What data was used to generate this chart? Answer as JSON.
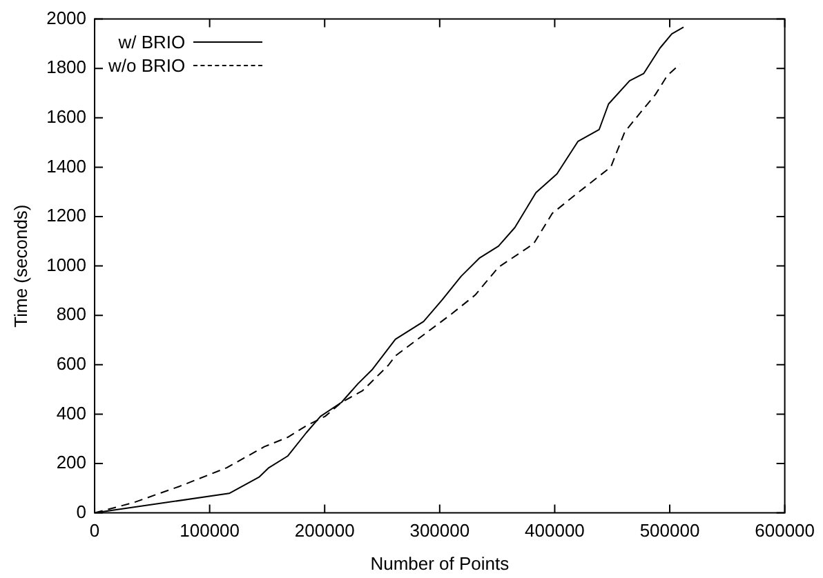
{
  "chart_data": {
    "type": "line",
    "xlabel": "Number of Points",
    "ylabel": "Time (seconds)",
    "xlim": [
      0,
      600000
    ],
    "xticks": [
      0,
      100000,
      200000,
      300000,
      400000,
      500000,
      600000
    ],
    "ylim": [
      0,
      2000
    ],
    "yticks": [
      0,
      200,
      400,
      600,
      800,
      1000,
      1200,
      1400,
      1600,
      1800,
      2000
    ],
    "grid": false,
    "legend": "top left",
    "marker": "none",
    "series": [
      {
        "name": "w/ BRIO",
        "color": "#000000",
        "line_style": "solid",
        "x": [
          0,
          117000,
          143300,
          151500,
          167800,
          184100,
          196400,
          214700,
          228900,
          241100,
          261500,
          286000,
          302200,
          318600,
          334800,
          351100,
          365400,
          383700,
          402000,
          420300,
          438600,
          446800,
          465100,
          477300,
          491600,
          501800,
          512000
        ],
        "values": [
          0,
          79,
          146,
          183,
          230,
          325,
          391,
          448,
          523,
          579,
          703,
          775,
          863,
          958,
          1033,
          1080,
          1156,
          1297,
          1373,
          1505,
          1552,
          1656,
          1750,
          1779,
          1883,
          1940,
          1967
        ]
      },
      {
        "name": "w/o BRIO",
        "color": "#000000",
        "line_style": "dashed",
        "x": [
          0,
          33400,
          74100,
          114900,
          147500,
          167800,
          184100,
          200400,
          214700,
          233000,
          255400,
          261500,
          286000,
          310400,
          330800,
          351100,
          381700,
          397900,
          420300,
          448800,
          460900,
          477300,
          487500,
          497700,
          508800
        ],
        "values": [
          0,
          41,
          108,
          183,
          268,
          306,
          353,
          391,
          448,
          495,
          598,
          636,
          721,
          806,
          882,
          995,
          1090,
          1213,
          1297,
          1401,
          1543,
          1637,
          1694,
          1770,
          1817
        ]
      }
    ]
  }
}
